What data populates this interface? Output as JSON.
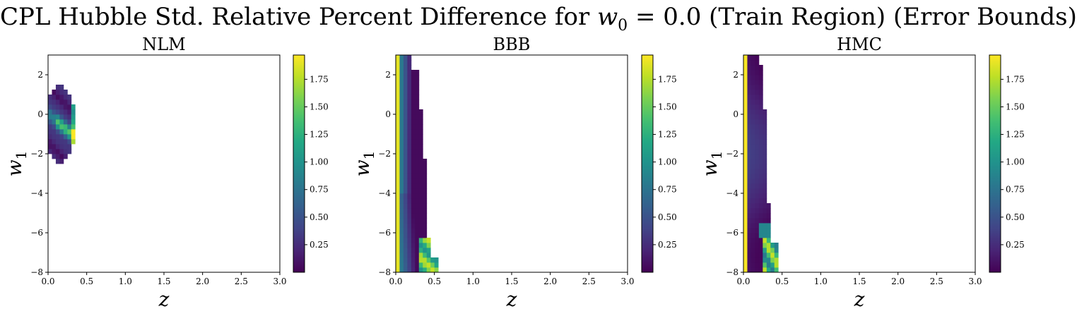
{
  "figure": {
    "title_prefix": "CPL Hubble Std. Relative Percent Difference for ",
    "title_var": "w",
    "title_sub": "0",
    "title_eq": " = 0.0 (Train Region) (Error Bounds)"
  },
  "chart_data": [
    {
      "type": "heatmap",
      "title": "NLM",
      "xlabel": "z",
      "ylabel": "w",
      "ylabel_sub": "1",
      "xlim": [
        0.0,
        3.0
      ],
      "ylim": [
        -8,
        3
      ],
      "xticks": [
        "0.0",
        "0.5",
        "1.0",
        "1.5",
        "2.0",
        "2.5",
        "3.0"
      ],
      "yticks": [
        "2",
        "0",
        "−2",
        "−4",
        "−6",
        "−8"
      ],
      "colorbar": {
        "range": [
          0.0,
          1.97
        ],
        "ticks": [
          "0.25",
          "0.50",
          "0.75",
          "1.00",
          "1.25",
          "1.50",
          "1.75"
        ]
      },
      "colormap": "viridis",
      "region": "ellipse covering z 0.0–0.35, w1 −2.4–1.4"
    },
    {
      "type": "heatmap",
      "title": "BBB",
      "xlabel": "z",
      "ylabel": "w",
      "ylabel_sub": "1",
      "xlim": [
        0.0,
        3.0
      ],
      "ylim": [
        -8,
        3
      ],
      "xticks": [
        "0.0",
        "0.5",
        "1.0",
        "1.5",
        "2.0",
        "2.5",
        "3.0"
      ],
      "yticks": [
        "2",
        "0",
        "−2",
        "−4",
        "−6",
        "−8"
      ],
      "colorbar": {
        "range": [
          0.0,
          1.97
        ],
        "ticks": [
          "0.25",
          "0.50",
          "0.75",
          "1.00",
          "1.25",
          "1.50",
          "1.75"
        ]
      },
      "colormap": "viridis",
      "region": "band z 0.0–0.55 across w1 −8–3"
    },
    {
      "type": "heatmap",
      "title": "HMC",
      "xlabel": "z",
      "ylabel": "w",
      "ylabel_sub": "1",
      "xlim": [
        0.0,
        3.0
      ],
      "ylim": [
        -8,
        3
      ],
      "xticks": [
        "0.0",
        "0.5",
        "1.0",
        "1.5",
        "2.0",
        "2.5",
        "3.0"
      ],
      "yticks": [
        "2",
        "0",
        "−2",
        "−4",
        "−6",
        "−8"
      ],
      "colorbar": {
        "range": [
          0.0,
          1.97
        ],
        "ticks": [
          "0.25",
          "0.50",
          "0.75",
          "1.00",
          "1.25",
          "1.50",
          "1.75"
        ]
      },
      "colormap": "viridis",
      "region": "band z 0.0–0.45 across w1 −8–3"
    }
  ]
}
